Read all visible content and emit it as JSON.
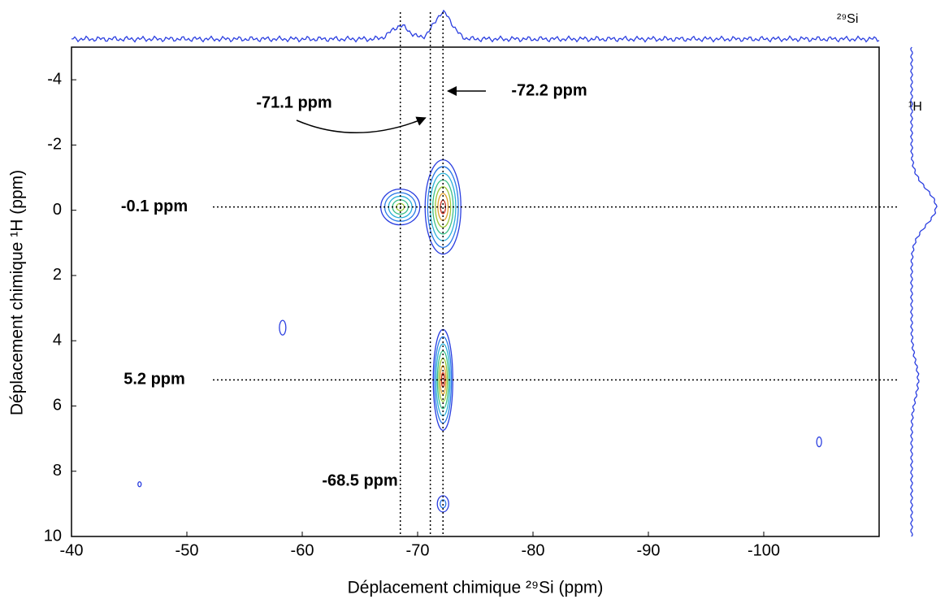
{
  "chart_data": {
    "type": "contour2d",
    "x_label": "Déplacement chimique ²⁹Si (ppm)",
    "y_label": "Déplacement chimique ¹H (ppm)",
    "top_projection_label": "²⁹Si",
    "right_projection_label": "¹H",
    "xlim": [
      -40,
      -110
    ],
    "xticks": [
      -40,
      -50,
      -60,
      -70,
      -80,
      -90,
      -100
    ],
    "ylim": [
      -5,
      10
    ],
    "yticks": [
      -4,
      -2,
      0,
      2,
      4,
      6,
      8,
      10
    ],
    "peaks": [
      {
        "x": -72.2,
        "y": -0.1
      },
      {
        "x": -68.5,
        "y": -0.1
      },
      {
        "x": -72.2,
        "y": 5.2
      },
      {
        "x": -72.2,
        "y": 9.0
      },
      {
        "x": -58.3,
        "y": 3.6
      },
      {
        "x": -45.9,
        "y": 8.4
      },
      {
        "x": -104.8,
        "y": 7.1
      }
    ],
    "x_annotations": [
      {
        "value": -68.5,
        "label": "-68.5 ppm"
      },
      {
        "value": -71.1,
        "label": "-71.1 ppm"
      },
      {
        "value": -72.2,
        "label": "-72.2 ppm"
      }
    ],
    "y_annotations": [
      {
        "value": -0.1,
        "label": "-0.1 ppm"
      },
      {
        "value": 5.2,
        "label": "5.2 ppm"
      }
    ]
  }
}
